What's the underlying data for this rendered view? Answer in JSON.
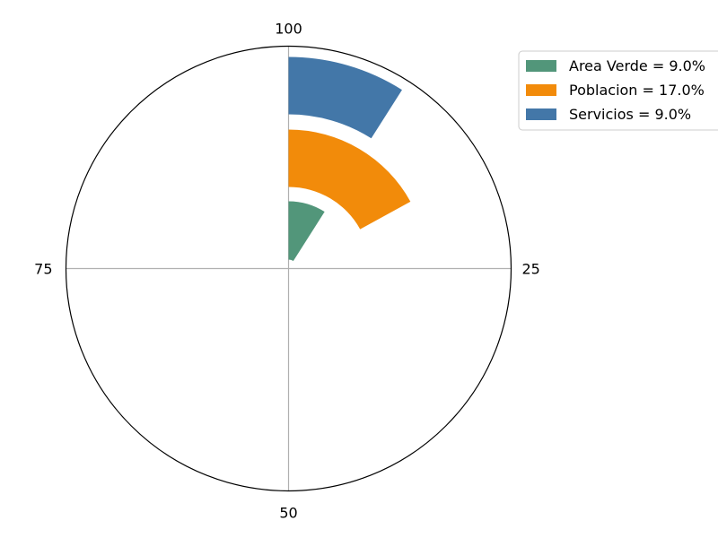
{
  "chart_data": {
    "type": "radial-bar",
    "title": "",
    "theta_ticks": [
      "100",
      "25",
      "50",
      "75"
    ],
    "theta_max": 100,
    "grid": true,
    "legend_position": "top-right",
    "series": [
      {
        "name": "Area Verde = 9.0%",
        "value": 9.0,
        "color": "#52967a"
      },
      {
        "name": "Poblacion = 17.0%",
        "value": 17.0,
        "color": "#f28b0a"
      },
      {
        "name": "Servicios = 9.0%",
        "value": 9.0,
        "color": "#4377a8"
      }
    ]
  }
}
